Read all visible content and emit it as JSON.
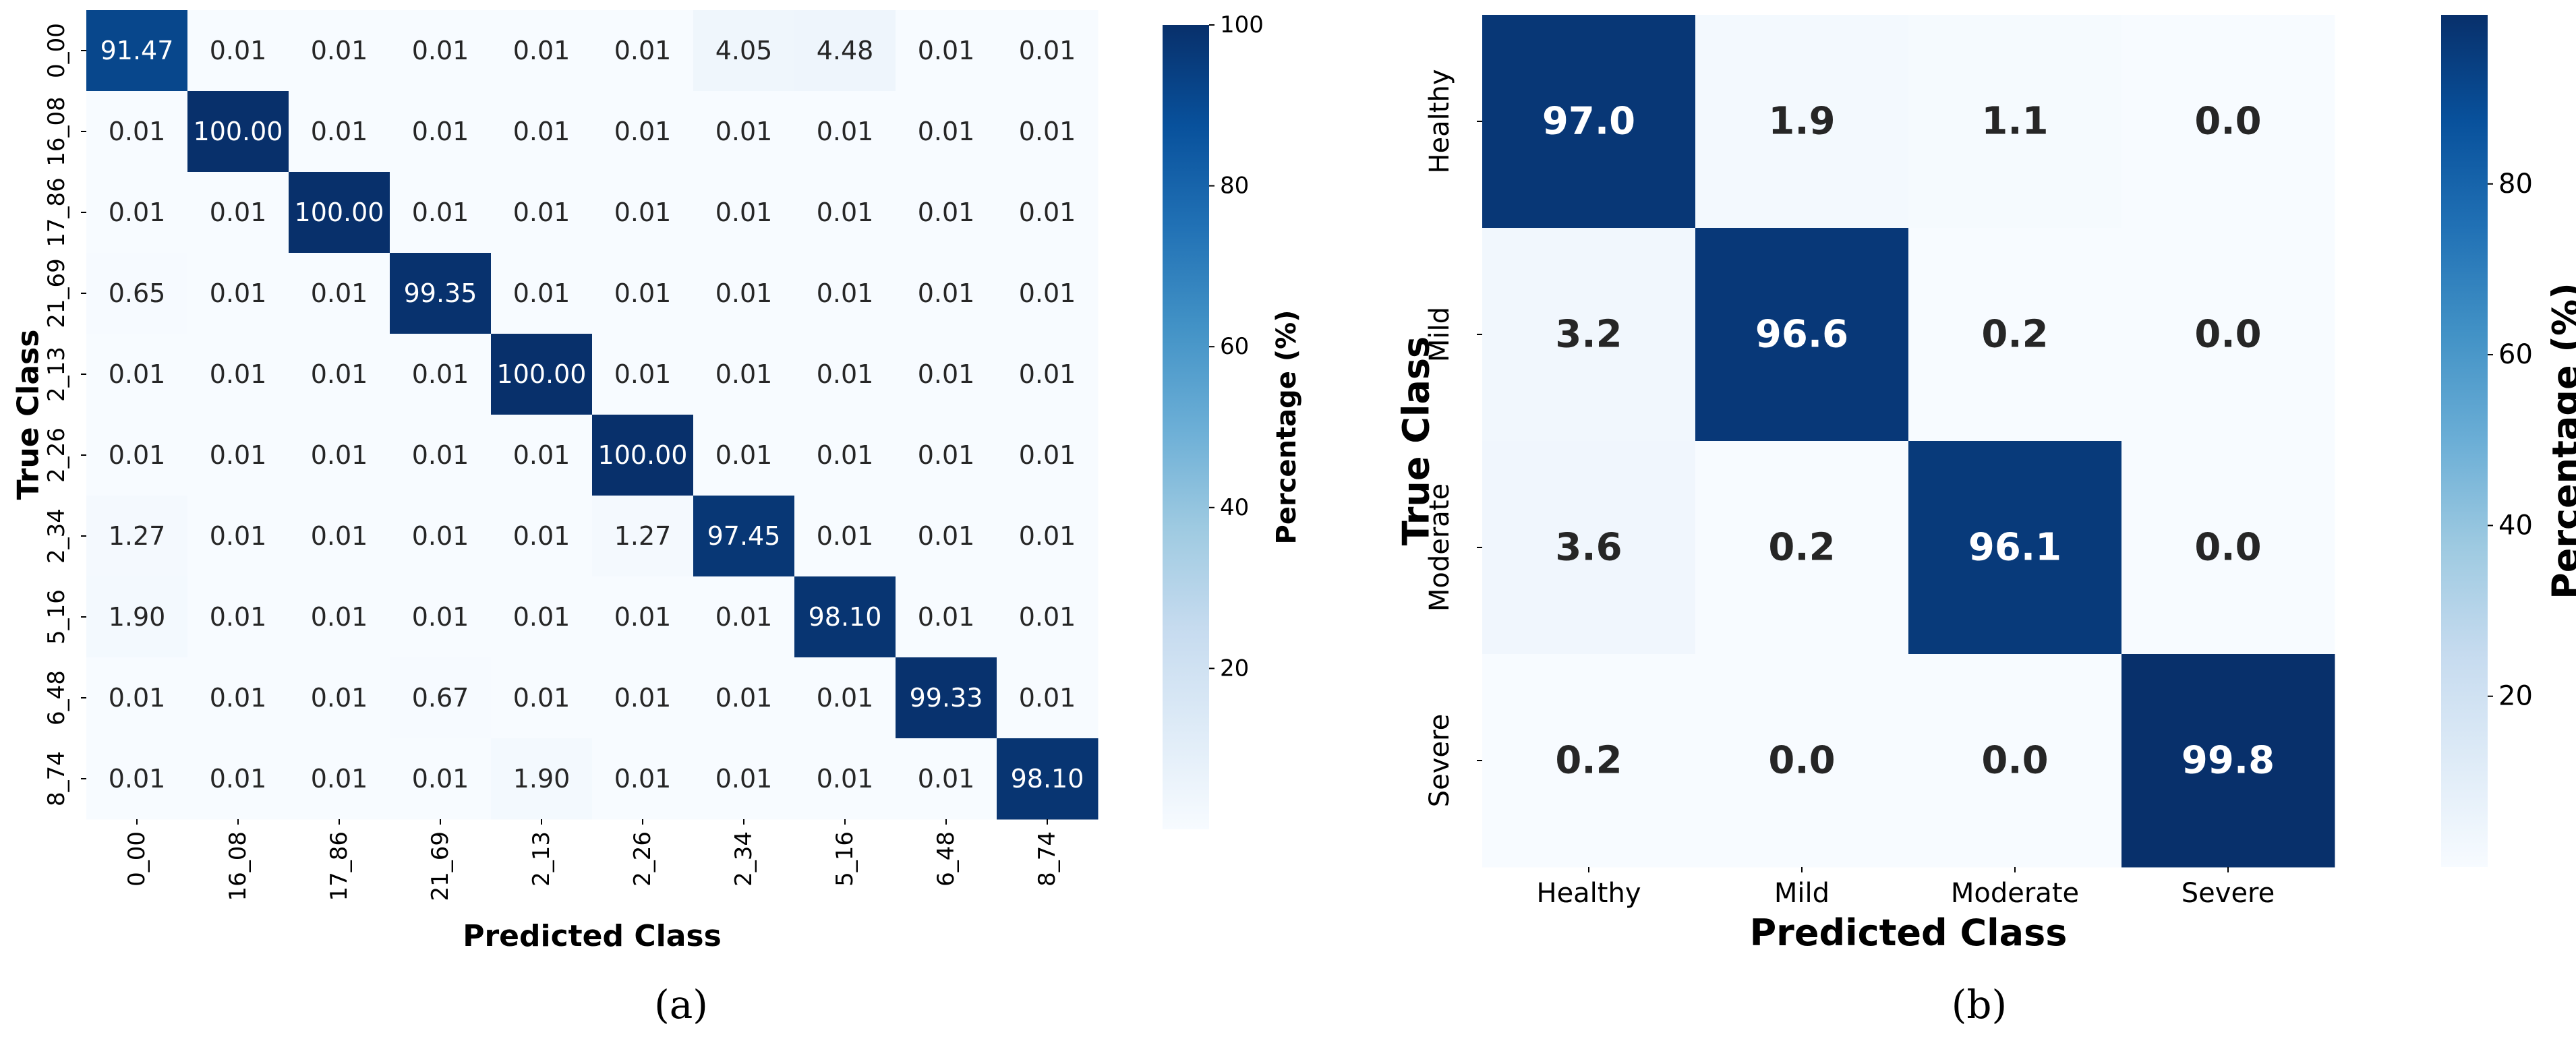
{
  "chart_data": [
    {
      "type": "heatmap",
      "panel_label": "(a)",
      "xlabel": "Predicted Class",
      "ylabel": "True Class",
      "x_categories": [
        "0_00",
        "16_08",
        "17_86",
        "21_69",
        "2_13",
        "2_26",
        "2_34",
        "5_16",
        "6_48",
        "8_74"
      ],
      "y_categories": [
        "0_00",
        "16_08",
        "17_86",
        "21_69",
        "2_13",
        "2_26",
        "2_34",
        "5_16",
        "6_48",
        "8_74"
      ],
      "cell_labels": [
        [
          "91.47",
          "0.01",
          "0.01",
          "0.01",
          "0.01",
          "0.01",
          "4.05",
          "4.48",
          "0.01",
          "0.01"
        ],
        [
          "0.01",
          "100.00",
          "0.01",
          "0.01",
          "0.01",
          "0.01",
          "0.01",
          "0.01",
          "0.01",
          "0.01"
        ],
        [
          "0.01",
          "0.01",
          "100.00",
          "0.01",
          "0.01",
          "0.01",
          "0.01",
          "0.01",
          "0.01",
          "0.01"
        ],
        [
          "0.65",
          "0.01",
          "0.01",
          "99.35",
          "0.01",
          "0.01",
          "0.01",
          "0.01",
          "0.01",
          "0.01"
        ],
        [
          "0.01",
          "0.01",
          "0.01",
          "0.01",
          "100.00",
          "0.01",
          "0.01",
          "0.01",
          "0.01",
          "0.01"
        ],
        [
          "0.01",
          "0.01",
          "0.01",
          "0.01",
          "0.01",
          "100.00",
          "0.01",
          "0.01",
          "0.01",
          "0.01"
        ],
        [
          "1.27",
          "0.01",
          "0.01",
          "0.01",
          "0.01",
          "1.27",
          "97.45",
          "0.01",
          "0.01",
          "0.01"
        ],
        [
          "1.90",
          "0.01",
          "0.01",
          "0.01",
          "0.01",
          "0.01",
          "0.01",
          "98.10",
          "0.01",
          "0.01"
        ],
        [
          "0.01",
          "0.01",
          "0.01",
          "0.67",
          "0.01",
          "0.01",
          "0.01",
          "0.01",
          "99.33",
          "0.01"
        ],
        [
          "0.01",
          "0.01",
          "0.01",
          "0.01",
          "1.90",
          "0.01",
          "0.01",
          "0.01",
          "0.01",
          "98.10"
        ]
      ],
      "colorbar": {
        "label": "Percentage (%)",
        "range": [
          0,
          100
        ],
        "ticks": [
          "20",
          "40",
          "60",
          "80",
          "100"
        ],
        "colormap": "Blues"
      },
      "grid": false
    },
    {
      "type": "heatmap",
      "panel_label": "(b)",
      "xlabel": "Predicted Class",
      "ylabel": "True Class",
      "x_categories": [
        "Healthy",
        "Mild",
        "Moderate",
        "Severe"
      ],
      "y_categories": [
        "Healthy",
        "Mild",
        "Moderate",
        "Severe"
      ],
      "cell_labels": [
        [
          "97.0",
          "1.9",
          "1.1",
          "0.0"
        ],
        [
          "3.2",
          "96.6",
          "0.2",
          "0.0"
        ],
        [
          "3.6",
          "0.2",
          "96.1",
          "0.0"
        ],
        [
          "0.2",
          "0.0",
          "0.0",
          "99.8"
        ]
      ],
      "colorbar": {
        "label": "Percentage (%)",
        "range": [
          0,
          99.8
        ],
        "ticks": [
          "20",
          "40",
          "60",
          "80"
        ],
        "colormap": "Blues"
      },
      "grid": false
    }
  ]
}
